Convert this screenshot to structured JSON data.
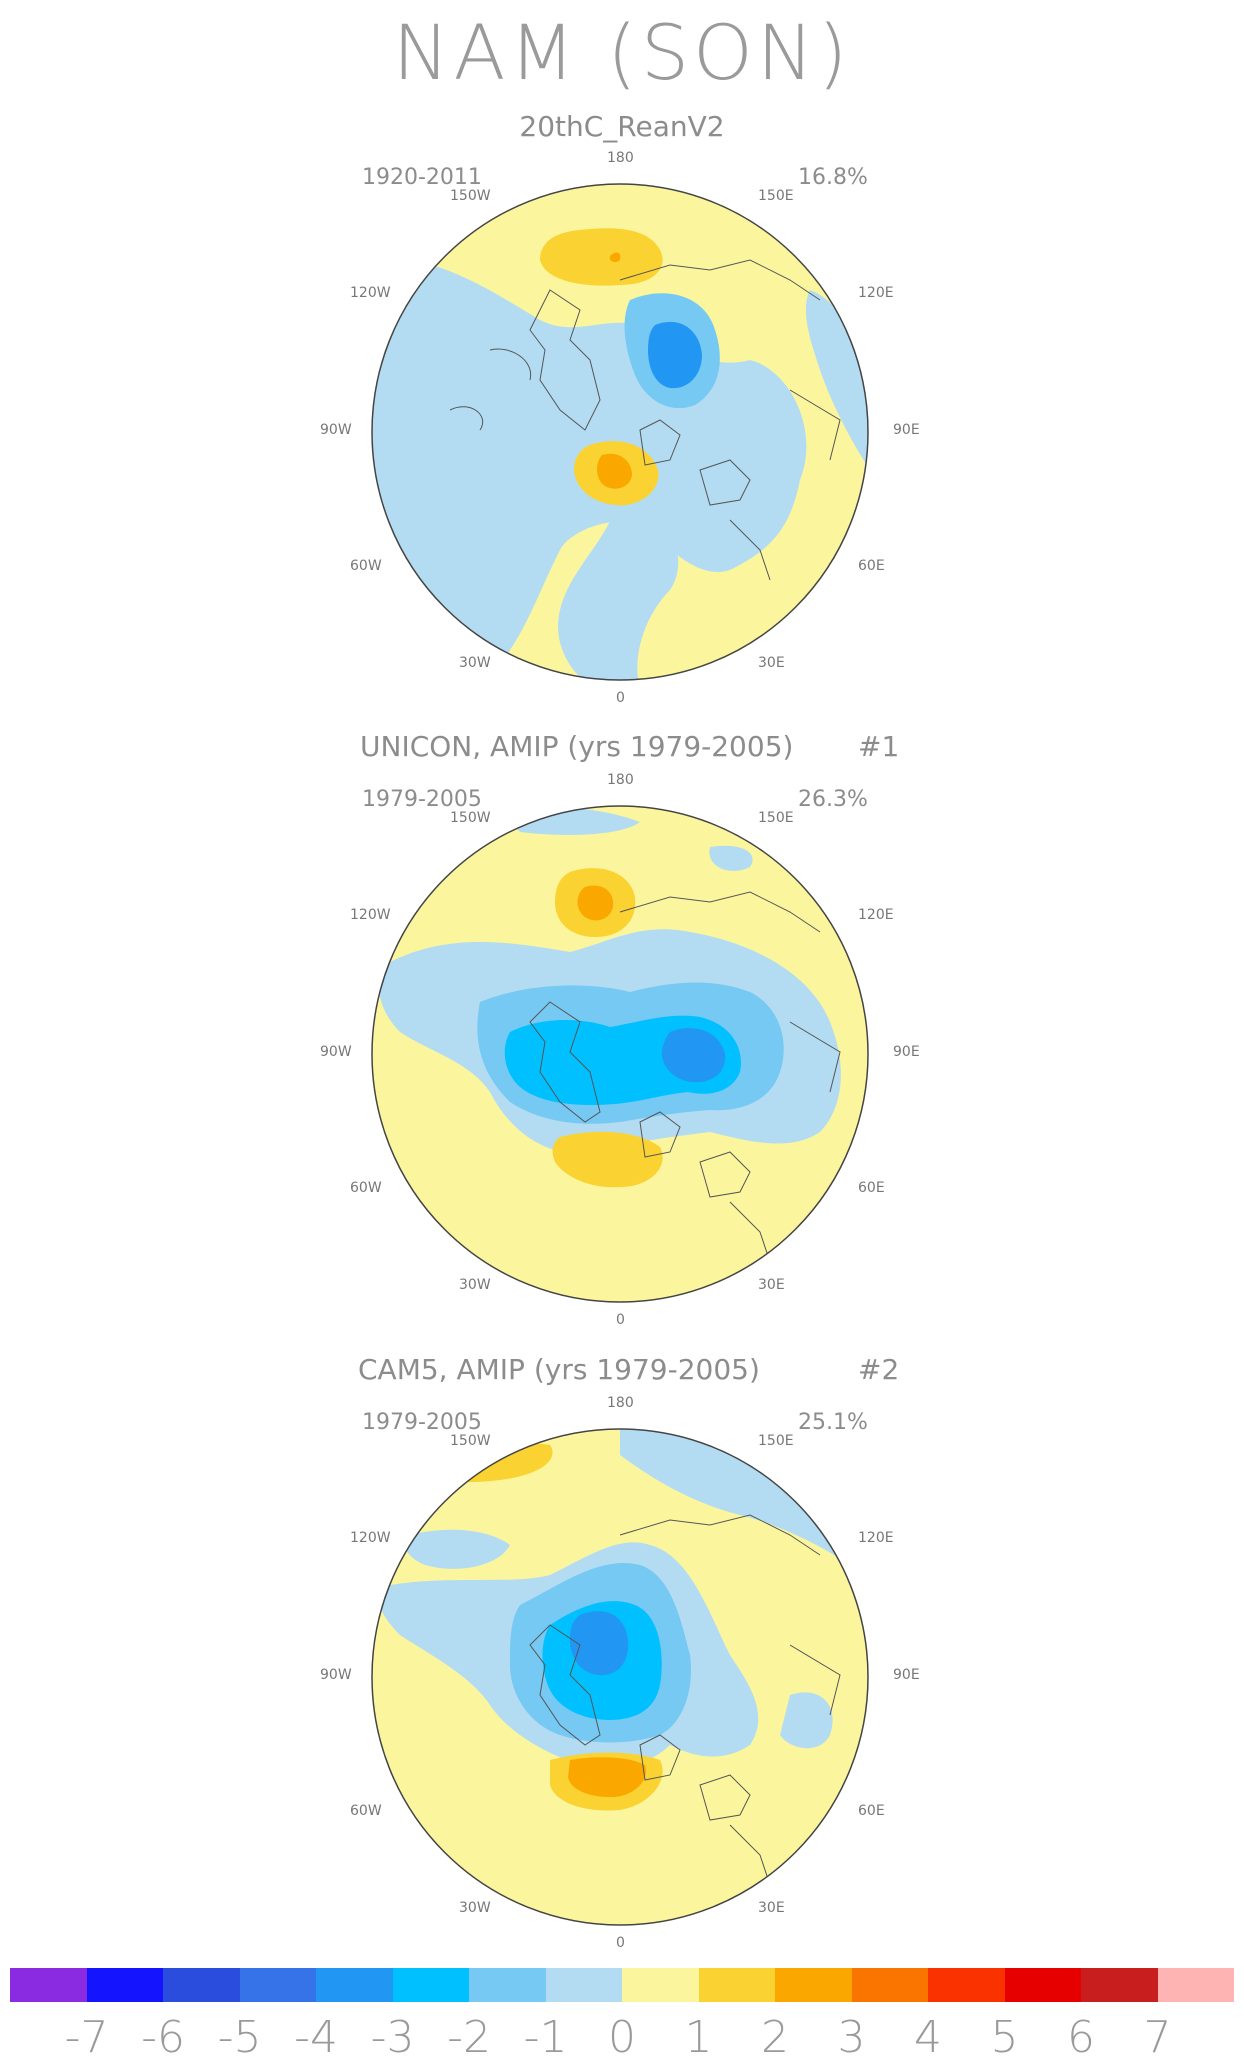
{
  "title": "NAM (SON)",
  "panels": [
    {
      "title": "20thC_ReanV2",
      "num": "",
      "years": "1920-2011",
      "pct": "16.8%"
    },
    {
      "title": "UNICON, AMIP (yrs 1979-2005)",
      "num": "#1",
      "years": "1979-2005",
      "pct": "26.3%"
    },
    {
      "title": "CAM5, AMIP (yrs 1979-2005)",
      "num": "#2",
      "years": "1979-2005",
      "pct": "25.1%"
    }
  ],
  "lon_labels": {
    "top": "180",
    "tl": "150W",
    "tr": "150E",
    "ul": "120W",
    "ur": "120E",
    "l": "90W",
    "r": "90E",
    "ll": "60W",
    "lr": "60E",
    "bl": "30W",
    "br": "30E",
    "bottom": "0"
  },
  "colorbar": {
    "colors": [
      "#8a2be2",
      "#1414ff",
      "#2a4ddd",
      "#3672e8",
      "#2196f3",
      "#00c0ff",
      "#76c9f2",
      "#b3dcf2",
      "#fbf69e",
      "#fad332",
      "#faa800",
      "#fa7400",
      "#fa3200",
      "#e60000",
      "#c81e1e",
      "#ffb4b4"
    ],
    "ticks": [
      "-7",
      "-6",
      "-5",
      "-4",
      "-3",
      "-2",
      "-1",
      "0",
      "1",
      "2",
      "3",
      "4",
      "5",
      "6",
      "7"
    ]
  }
}
